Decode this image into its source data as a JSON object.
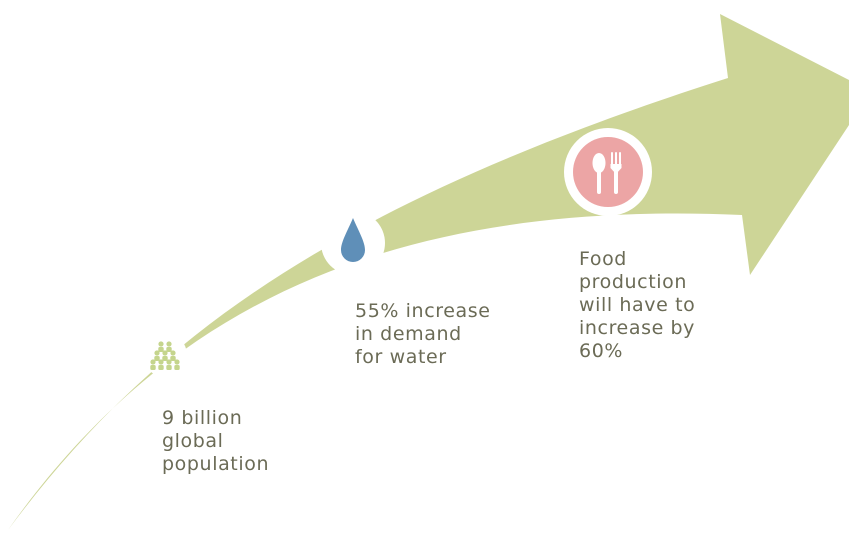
{
  "colors": {
    "arrow": "#cdd597",
    "caption_text": "#6b6b56",
    "people_icon": "#c5d58d",
    "water_drop": "#5f8fb8",
    "food_circle": "#eca5a5",
    "icon_background": "#ffffff"
  },
  "milestones": [
    {
      "icon": "people-icon",
      "caption": "9 billion\nglobal\npopulation"
    },
    {
      "icon": "water-drop-icon",
      "caption": "55% increase\nin demand\nfor water"
    },
    {
      "icon": "cutlery-icon",
      "caption": "Food\nproduction\nwill have to\nincrease by\n60%"
    }
  ]
}
